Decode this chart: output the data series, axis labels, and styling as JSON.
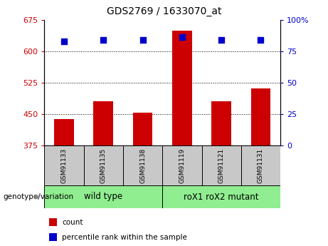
{
  "title": "GDS2769 / 1633070_at",
  "samples": [
    "GSM91133",
    "GSM91135",
    "GSM91138",
    "GSM91119",
    "GSM91121",
    "GSM91131"
  ],
  "counts": [
    437,
    480,
    453,
    648,
    480,
    510
  ],
  "percentile_ranks": [
    83,
    84,
    84,
    86,
    84,
    84
  ],
  "group1_label": "wild type",
  "group2_label": "roX1 roX2 mutant",
  "group1_indices": [
    0,
    1,
    2
  ],
  "group2_indices": [
    3,
    4,
    5
  ],
  "group_color": "#90EE90",
  "sample_box_color": "#c8c8c8",
  "ylim_left": [
    375,
    675
  ],
  "ylim_right": [
    0,
    100
  ],
  "yticks_left": [
    375,
    450,
    525,
    600,
    675
  ],
  "yticks_right": [
    0,
    25,
    50,
    75,
    100
  ],
  "ytick_right_labels": [
    "0",
    "25",
    "50",
    "75",
    "100%"
  ],
  "bar_color": "#cc0000",
  "dot_color": "#0000cc",
  "tick_color_left": "#cc0000",
  "tick_color_right": "#0000cc",
  "bar_width": 0.5,
  "dot_size": 40,
  "grid_yticks": [
    450,
    525,
    600
  ],
  "title_fontsize": 10,
  "tick_fontsize": 8,
  "sample_fontsize": 6.5,
  "group_fontsize": 8.5,
  "legend_fontsize": 7.5,
  "genotype_label": "genotype/variation",
  "genotype_fontsize": 7.5,
  "legend_count": "count",
  "legend_pct": "percentile rank within the sample"
}
